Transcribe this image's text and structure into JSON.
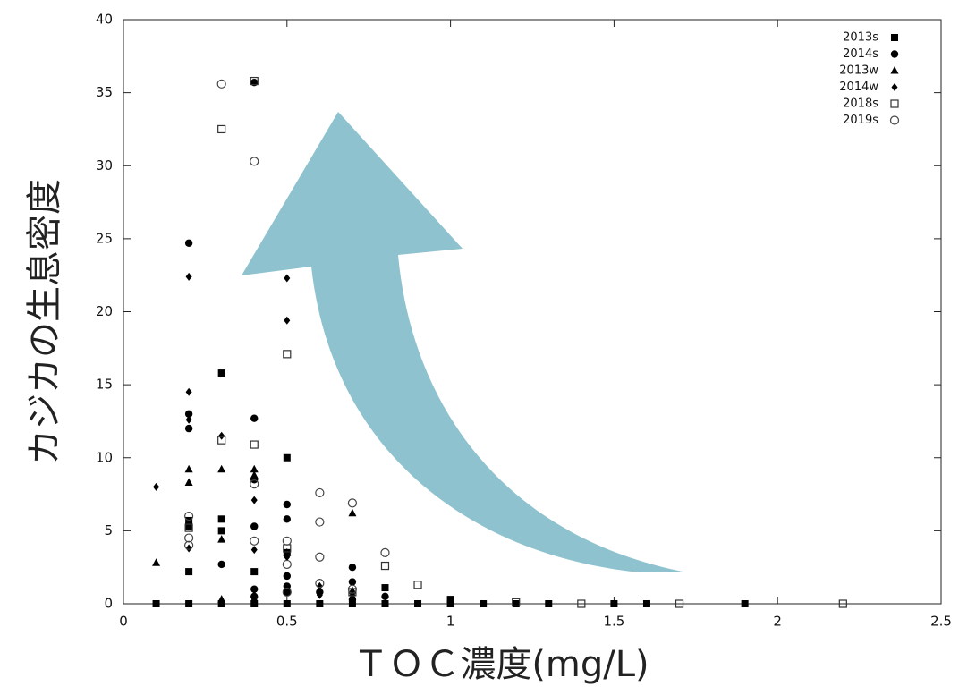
{
  "chart_data": {
    "type": "scatter",
    "x_label": "ＴＯＣ濃度(mg/L)",
    "y_label": "カジカの生息密度",
    "xlim": [
      0,
      2.5
    ],
    "xticks": [
      0,
      0.5,
      1,
      1.5,
      2,
      2.5
    ],
    "ylim": [
      0,
      40
    ],
    "yticks": [
      0,
      5,
      10,
      15,
      20,
      25,
      30,
      35,
      40
    ],
    "legend_position": "top-right",
    "series": [
      {
        "name": "2013s",
        "marker": "square",
        "filled": true,
        "color": "#000000",
        "x": [
          0.1,
          0.2,
          0.2,
          0.2,
          0.2,
          0.3,
          0.3,
          0.3,
          0.3,
          0.4,
          0.4,
          0.5,
          0.5,
          0.5,
          0.6,
          0.7,
          0.8,
          0.8,
          0.9,
          1.0,
          1.0,
          1.1,
          1.2,
          1.3,
          1.5,
          1.6,
          1.9
        ],
        "values": [
          0,
          0,
          2.2,
          5.3,
          5.7,
          0,
          15.8,
          5.0,
          5.8,
          0,
          2.2,
          0,
          10,
          3.5,
          0,
          0,
          0,
          1.1,
          0,
          0.3,
          0,
          0,
          0,
          0,
          0,
          0,
          0
        ]
      },
      {
        "name": "2014s",
        "marker": "circle",
        "filled": true,
        "color": "#000000",
        "x": [
          0.2,
          0.2,
          0.2,
          0.3,
          0.4,
          0.4,
          0.4,
          0.4,
          0.4,
          0.4,
          0.5,
          0.5,
          0.5,
          0.5,
          0.5,
          0.6,
          0.7,
          0.7,
          0.7,
          0.8
        ],
        "values": [
          24.7,
          13,
          12,
          2.7,
          35.7,
          12.7,
          8.5,
          5.3,
          1,
          0.5,
          6.8,
          5.8,
          1.9,
          1.2,
          0.8,
          0.8,
          2.5,
          1.5,
          0.3,
          0.5
        ]
      },
      {
        "name": "2013w",
        "marker": "triangle",
        "filled": true,
        "color": "#000000",
        "x": [
          0.1,
          0.2,
          0.2,
          0.3,
          0.3,
          0.3,
          0.4,
          0.4,
          0.4,
          0.5,
          0.7,
          0.7
        ],
        "values": [
          2.8,
          9.2,
          8.3,
          9.2,
          4.4,
          0.3,
          9.2,
          8.8,
          0.6,
          3.5,
          6.2,
          0.9
        ]
      },
      {
        "name": "2014w",
        "marker": "diamond",
        "filled": true,
        "color": "#000000",
        "x": [
          0.1,
          0.2,
          0.2,
          0.2,
          0.2,
          0.3,
          0.4,
          0.4,
          0.4,
          0.5,
          0.5,
          0.5,
          0.6,
          0.6,
          0.7
        ],
        "values": [
          8,
          22.4,
          14.5,
          12.6,
          3.8,
          11.5,
          7.1,
          3.7,
          0.3,
          22.3,
          19.4,
          3.2,
          0.6,
          1.2,
          0.6
        ]
      },
      {
        "name": "2018s",
        "marker": "square",
        "filled": false,
        "color": "#333333",
        "x": [
          0.2,
          0.3,
          0.3,
          0.4,
          0.4,
          0.5,
          0.5,
          0.7,
          0.8,
          0.9,
          1.2,
          1.4,
          1.7,
          2.2
        ],
        "values": [
          5.2,
          32.5,
          11.2,
          35.8,
          10.9,
          17.1,
          3.8,
          0.8,
          2.6,
          1.3,
          0.1,
          0,
          0,
          0
        ]
      },
      {
        "name": "2019s",
        "marker": "circle",
        "filled": false,
        "color": "#444444",
        "x": [
          0.2,
          0.2,
          0.2,
          0.3,
          0.4,
          0.4,
          0.4,
          0.5,
          0.5,
          0.5,
          0.6,
          0.6,
          0.6,
          0.6,
          0.7,
          0.7,
          0.8
        ],
        "values": [
          6,
          4.5,
          4,
          35.6,
          30.3,
          8.2,
          4.3,
          4.3,
          2.7,
          0.8,
          7.6,
          5.6,
          3.2,
          1.4,
          6.9,
          1,
          3.5
        ]
      }
    ]
  }
}
